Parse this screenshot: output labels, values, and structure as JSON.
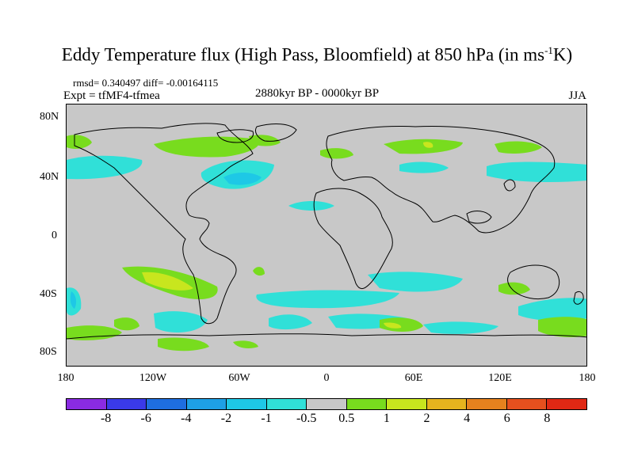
{
  "title_main": "Eddy Temperature flux (High Pass, Bloomfield) at 850 hPa (in ms",
  "title_sup": "-1",
  "title_end": "K)",
  "stats": "rmsd= 0.340497 diff= -0.00164115",
  "expt": "Expt = tfMF4-tfmea",
  "period": "2880kyr BP - 0000kyr BP",
  "season": "JJA",
  "lat_labels": [
    "80N",
    "40N",
    "0",
    "40S",
    "80S"
  ],
  "lon_labels": [
    "180",
    "120W",
    "60W",
    "0",
    "60E",
    "120E",
    "180"
  ],
  "colorbar": {
    "labels": [
      "-8",
      "-6",
      "-4",
      "-2",
      "-1",
      "-0.5",
      "0.5",
      "1",
      "2",
      "4",
      "6",
      "8"
    ],
    "colors": [
      "#8a2be2",
      "#3a3ae8",
      "#1e6ee0",
      "#1ea0e6",
      "#1ec8e6",
      "#30e0d8",
      "#c8c8c8",
      "#78dc1e",
      "#c8e61e",
      "#e6b41e",
      "#e6821e",
      "#e6501e",
      "#e02814"
    ]
  }
}
